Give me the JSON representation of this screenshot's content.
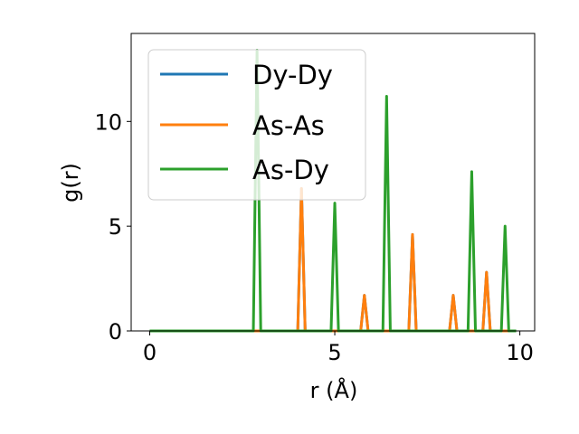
{
  "chart_data": {
    "type": "line",
    "xlabel": "r (Å)",
    "ylabel": "g(r)",
    "xlim": [
      -0.5,
      10.4
    ],
    "ylim": [
      0,
      14.2
    ],
    "xticks": [
      0,
      5,
      10
    ],
    "yticks": [
      0,
      5,
      10
    ],
    "grid": false,
    "legend_position": "upper-left",
    "series": [
      {
        "name": "Dy-Dy",
        "color": "#1f77b4",
        "x": [
          0,
          4.0,
          4.1,
          4.2,
          5.7,
          5.8,
          5.9,
          7.0,
          7.1,
          7.2,
          8.1,
          8.2,
          8.3,
          9.0,
          9.1,
          9.2,
          9.9
        ],
        "y": [
          0,
          0,
          6.8,
          0,
          0,
          1.7,
          0,
          0,
          4.6,
          0,
          0,
          1.7,
          0,
          0,
          2.8,
          0,
          0
        ]
      },
      {
        "name": "As-As",
        "color": "#ff7f0e",
        "x": [
          0,
          4.0,
          4.1,
          4.2,
          5.7,
          5.8,
          5.9,
          7.0,
          7.1,
          7.2,
          8.1,
          8.2,
          8.3,
          9.0,
          9.1,
          9.2,
          9.9
        ],
        "y": [
          0,
          0,
          6.8,
          0,
          0,
          1.7,
          0,
          0,
          4.6,
          0,
          0,
          1.7,
          0,
          0,
          2.8,
          0,
          0
        ]
      },
      {
        "name": "As-Dy",
        "color": "#2ca02c",
        "x": [
          0,
          2.8,
          2.9,
          3.0,
          4.9,
          5.0,
          5.1,
          6.3,
          6.4,
          6.5,
          8.6,
          8.7,
          8.8,
          9.5,
          9.6,
          9.7,
          9.9
        ],
        "y": [
          0,
          0,
          13.4,
          0,
          0,
          6.1,
          0,
          0,
          11.2,
          0,
          0,
          7.6,
          0,
          0,
          5.0,
          0,
          0
        ]
      }
    ]
  }
}
